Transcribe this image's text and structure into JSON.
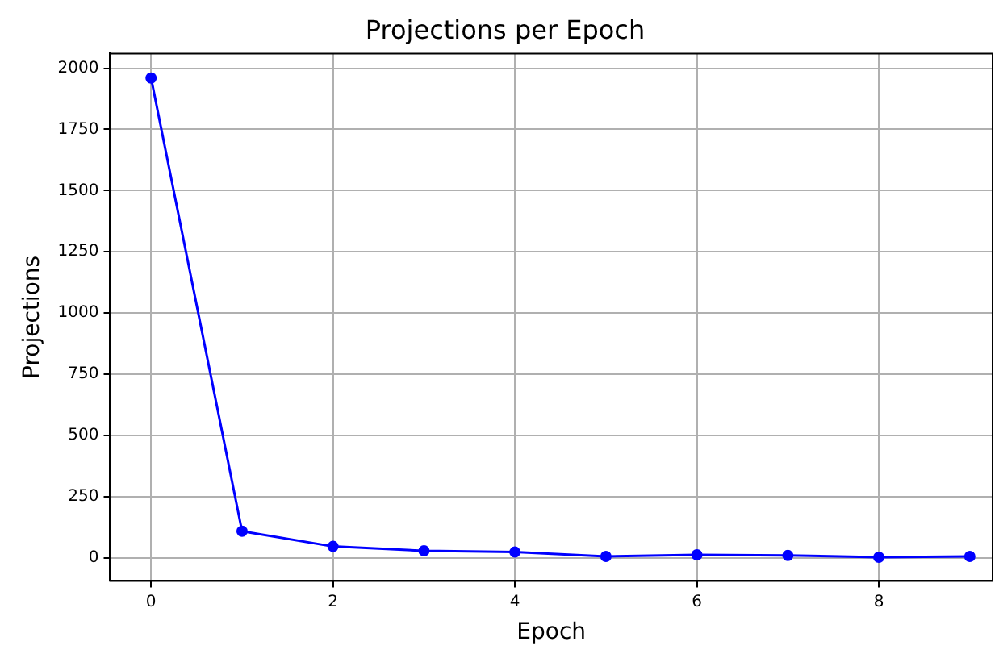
{
  "chart_data": {
    "type": "line",
    "title": "Projections per Epoch",
    "xlabel": "Epoch",
    "ylabel": "Projections",
    "x": [
      0,
      1,
      2,
      3,
      4,
      5,
      6,
      7,
      8,
      9
    ],
    "series": [
      {
        "color": "#0000ff",
        "values": [
          1960,
          108,
          46,
          28,
          23,
          5,
          12,
          9,
          2,
          5
        ]
      }
    ],
    "xlim": [
      -0.45,
      9.25
    ],
    "xticks": [
      0,
      2,
      4,
      6,
      8
    ],
    "ylim": [
      -95,
      2060
    ],
    "yticks": [
      0,
      250,
      500,
      750,
      1000,
      1250,
      1500,
      1750,
      2000
    ],
    "grid": true,
    "marker": "circle",
    "line_style": "solid",
    "legend": false
  }
}
